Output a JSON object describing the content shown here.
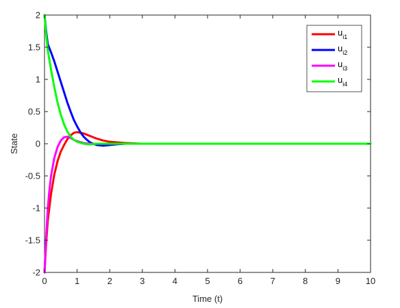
{
  "chart_data": {
    "type": "line",
    "title": "",
    "xlabel": "Time (t)",
    "ylabel": "State",
    "xlim": [
      0,
      10
    ],
    "ylim": [
      -2,
      2
    ],
    "xticks": [
      "0",
      "1",
      "2",
      "3",
      "4",
      "5",
      "6",
      "7",
      "8",
      "9",
      "10"
    ],
    "yticks": [
      "2",
      "1.5",
      "1",
      "0.5",
      "0",
      "-0.5",
      "-1",
      "-1.5",
      "-2"
    ],
    "grid": false,
    "legend_position": "top-right",
    "series": [
      {
        "name": "u_i1",
        "legend_main": "u",
        "legend_sub": "i1",
        "color": "#ff0000",
        "x": [
          0,
          0.05,
          0.1,
          0.2,
          0.3,
          0.4,
          0.5,
          0.6,
          0.7,
          0.8,
          0.9,
          1.0,
          1.2,
          1.4,
          1.6,
          1.8,
          2.0,
          2.5,
          3.0,
          3.5,
          4.0,
          5.0,
          6.0,
          8.0,
          10.0
        ],
        "y": [
          -2,
          -1.55,
          -1.2,
          -0.78,
          -0.48,
          -0.27,
          -0.12,
          -0.02,
          0.07,
          0.13,
          0.17,
          0.18,
          0.16,
          0.12,
          0.08,
          0.05,
          0.03,
          0.01,
          0.0,
          0.0,
          0.0,
          0.0,
          0.0,
          0.0,
          0.0
        ]
      },
      {
        "name": "u_i2",
        "legend_main": "u",
        "legend_sub": "i2",
        "color": "#0000ff",
        "x": [
          0,
          0.05,
          0.1,
          0.2,
          0.3,
          0.4,
          0.5,
          0.6,
          0.7,
          0.8,
          0.9,
          1.0,
          1.1,
          1.2,
          1.3,
          1.4,
          1.5,
          1.6,
          1.8,
          2.0,
          2.2,
          2.5,
          3.0,
          4.0,
          5.0,
          6.0,
          8.0,
          10.0
        ],
        "y": [
          2,
          1.75,
          1.55,
          1.42,
          1.28,
          1.12,
          0.96,
          0.8,
          0.64,
          0.5,
          0.37,
          0.27,
          0.18,
          0.11,
          0.06,
          0.02,
          0.0,
          -0.02,
          -0.03,
          -0.02,
          -0.01,
          0.0,
          0.0,
          0.0,
          0.0,
          0.0,
          0.0,
          0.0
        ]
      },
      {
        "name": "u_i3",
        "legend_main": "u",
        "legend_sub": "i3",
        "color": "#ff00ff",
        "x": [
          0,
          0.05,
          0.1,
          0.15,
          0.2,
          0.3,
          0.4,
          0.5,
          0.6,
          0.7,
          0.8,
          0.9,
          1.0,
          1.2,
          1.4,
          1.6,
          2.0,
          3.0,
          4.0,
          6.0,
          8.0,
          10.0
        ],
        "y": [
          -2,
          -1.45,
          -1.0,
          -0.72,
          -0.5,
          -0.22,
          -0.05,
          0.05,
          0.1,
          0.11,
          0.09,
          0.06,
          0.04,
          0.01,
          0.0,
          0.0,
          0.0,
          0.0,
          0.0,
          0.0,
          0.0,
          0.0
        ]
      },
      {
        "name": "u_i4",
        "legend_main": "u",
        "legend_sub": "i4",
        "color": "#00ff00",
        "x": [
          0,
          0.05,
          0.1,
          0.2,
          0.3,
          0.4,
          0.5,
          0.6,
          0.7,
          0.8,
          0.9,
          1.0,
          1.2,
          1.4,
          1.6,
          2.0,
          3.0,
          4.0,
          6.0,
          8.0,
          10.0
        ],
        "y": [
          2,
          1.7,
          1.45,
          1.15,
          0.88,
          0.64,
          0.45,
          0.3,
          0.19,
          0.11,
          0.06,
          0.03,
          0.0,
          -0.01,
          0.0,
          0.0,
          0.0,
          0.0,
          0.0,
          0.0,
          0.0
        ]
      }
    ]
  }
}
